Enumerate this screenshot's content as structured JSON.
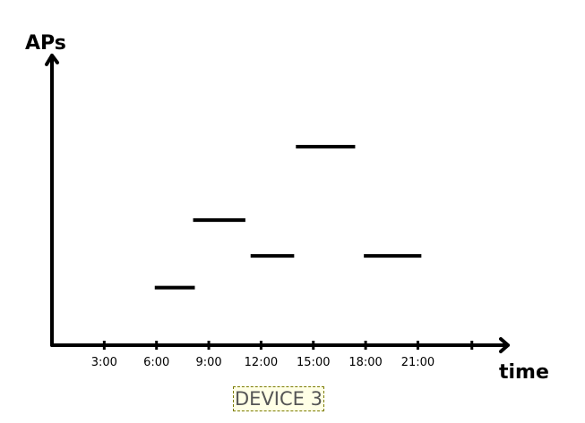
{
  "chart_data": {
    "type": "line",
    "title": "",
    "xlabel": "time",
    "ylabel": "APs",
    "xlim": [
      0,
      24
    ],
    "ylim": [
      0,
      1
    ],
    "xtick_labels": [
      "3:00",
      "6:00",
      "9:00",
      "12:00",
      "15:00",
      "18:00",
      "21:00"
    ],
    "xtick_values": [
      3,
      6,
      9,
      12,
      15,
      18,
      21
    ],
    "segments": [
      {
        "x_start": 5.9,
        "x_end": 8.2,
        "y": 0.29
      },
      {
        "x_start": 8.1,
        "x_end": 11.1,
        "y": 0.63
      },
      {
        "x_start": 11.4,
        "x_end": 13.9,
        "y": 0.45
      },
      {
        "x_start": 14.0,
        "x_end": 17.4,
        "y": 1.0
      },
      {
        "x_start": 17.9,
        "x_end": 21.2,
        "y": 0.45
      }
    ],
    "grid": false,
    "legend": "none"
  },
  "caption": "DEVICE 3"
}
